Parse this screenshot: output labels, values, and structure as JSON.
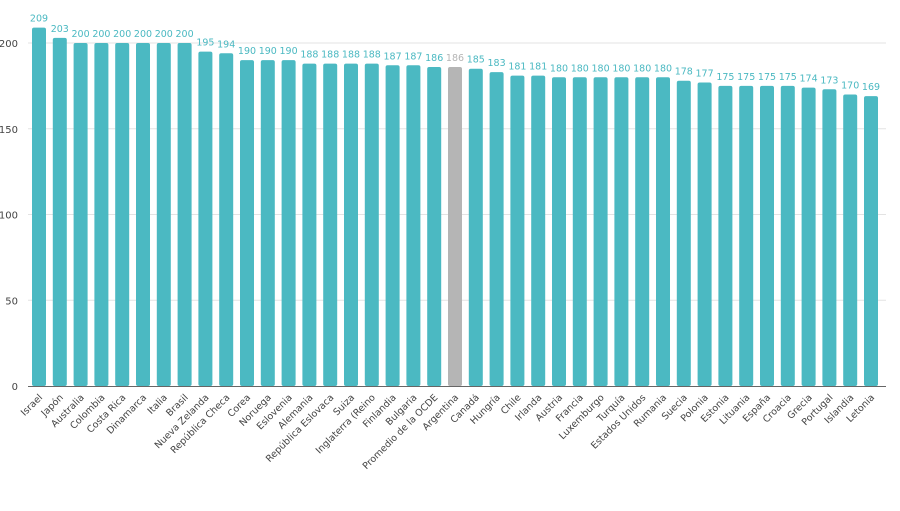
{
  "chart_data": {
    "type": "bar",
    "title": "",
    "xlabel": "",
    "ylabel": "",
    "ylim": [
      0,
      200
    ],
    "yticks": [
      0,
      50,
      100,
      150,
      200
    ],
    "grid": true,
    "legend": "none",
    "colors": {
      "default": "#4bb9c2",
      "highlight": "#b5b5b5",
      "label_default": "#4bb9c2",
      "label_highlight": "#b5b5b5"
    },
    "highlight_category": "Argentina",
    "categories": [
      "Israel",
      "Japón",
      "Australia",
      "Colombia",
      "Costa Rica",
      "Dinamarca",
      "Italia",
      "Brasil",
      "Nueva Zelanda",
      "República Checa",
      "Corea",
      "Noruega",
      "Eslovenia",
      "Alemania",
      "República Eslovaca",
      "Suiza",
      "Inglaterra (Reino",
      "Finlandia",
      "Bulgaria",
      "Promedio de la OCDE",
      "Argentina",
      "Canadá",
      "Hungría",
      "Chile",
      "Irlanda",
      "Austria",
      "Francia",
      "Luxemburgo",
      "Turquía",
      "Estados Unidos",
      "Rumania",
      "Suecia",
      "Polonia",
      "Estonia",
      "Lituania",
      "España",
      "Croacia",
      "Grecia",
      "Portugal",
      "Islandia",
      "Letonia"
    ],
    "values": [
      209,
      203,
      200,
      200,
      200,
      200,
      200,
      200,
      195,
      194,
      190,
      190,
      190,
      188,
      188,
      188,
      188,
      187,
      187,
      186,
      186,
      185,
      183,
      181,
      181,
      180,
      180,
      180,
      180,
      180,
      180,
      178,
      177,
      175,
      175,
      175,
      175,
      174,
      173,
      170,
      169
    ]
  }
}
